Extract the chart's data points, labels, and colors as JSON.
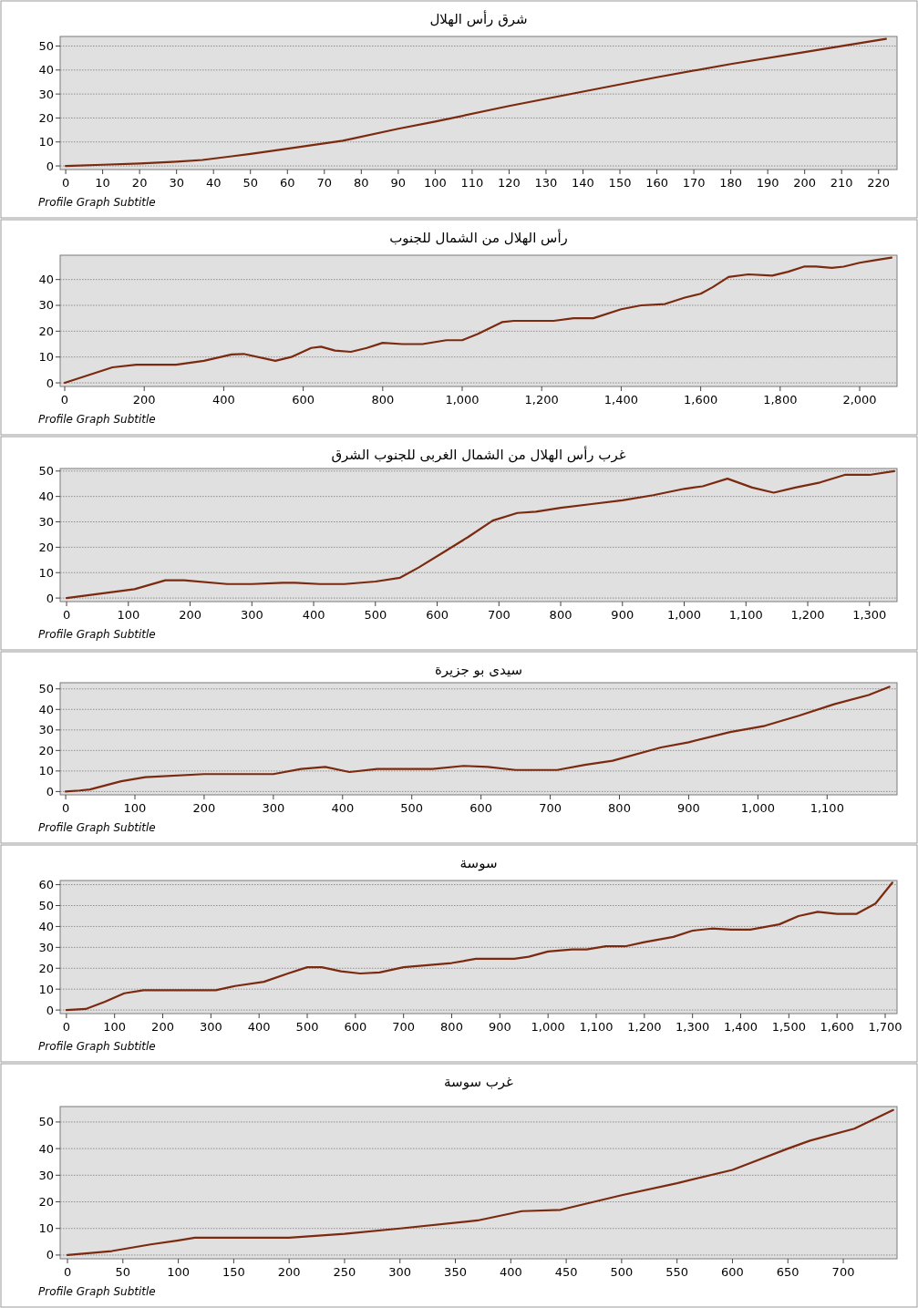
{
  "chart_data": [
    {
      "type": "line",
      "title": "شرق رأس الهلال",
      "annotations": [
        "Profile Graph Subtitle"
      ],
      "color": "#7b2a10",
      "grid": "y",
      "xlim": [
        -1.5,
        225
      ],
      "ylim": [
        -1.5,
        54
      ],
      "xticks": [
        0,
        10,
        20,
        30,
        40,
        50,
        60,
        70,
        80,
        90,
        100,
        110,
        120,
        130,
        140,
        150,
        160,
        170,
        180,
        190,
        200,
        210,
        220
      ],
      "yticks": [
        0,
        10,
        20,
        30,
        40,
        50
      ],
      "x": [
        0,
        10,
        20,
        30,
        37,
        50,
        60,
        75,
        90,
        100,
        120,
        140,
        160,
        180,
        200,
        222
      ],
      "values": [
        0,
        0.5,
        1,
        1.8,
        2.5,
        5,
        7.2,
        10.5,
        15.5,
        18.5,
        25,
        31,
        37,
        42.5,
        47.5,
        53
      ]
    },
    {
      "type": "line",
      "title": "رأس الهلال من الشمال للجنوب",
      "annotations": [
        "Profile Graph Subtitle"
      ],
      "color": "#7b2a10",
      "grid": "y",
      "xlim": [
        -11.5,
        2094
      ],
      "ylim": [
        -1.4,
        49.4
      ],
      "xticks": [
        0,
        200,
        400,
        600,
        800,
        {
          "value": 1000,
          "label": "1,000"
        },
        {
          "value": 1200,
          "label": "1,200"
        },
        {
          "value": 1400,
          "label": "1,400"
        },
        {
          "value": 1600,
          "label": "1,600"
        },
        {
          "value": 1800,
          "label": "1,800"
        },
        {
          "value": 2000,
          "label": "2,000"
        }
      ],
      "yticks": [
        0,
        10,
        20,
        30,
        40
      ],
      "x": [
        0,
        60,
        120,
        180,
        280,
        350,
        420,
        450,
        530,
        570,
        620,
        645,
        680,
        720,
        760,
        800,
        850,
        900,
        960,
        1000,
        1040,
        1100,
        1130,
        1230,
        1280,
        1330,
        1400,
        1450,
        1510,
        1560,
        1600,
        1630,
        1670,
        1720,
        1780,
        1820,
        1860,
        1890,
        1930,
        1960,
        2000,
        2040,
        2080
      ],
      "values": [
        0,
        3,
        6,
        7,
        7,
        8.5,
        11,
        11.2,
        8.5,
        10,
        13.5,
        14,
        12.5,
        12,
        13.5,
        15.5,
        15,
        15,
        16.5,
        16.5,
        19,
        23.5,
        24,
        24,
        25,
        25,
        28.5,
        30,
        30.5,
        33,
        34.5,
        37,
        41,
        42,
        41.5,
        43,
        45,
        45,
        44.5,
        45,
        46.5,
        47.5,
        48.5
      ]
    },
    {
      "type": "line",
      "title": "غرب رأس الهلال من الشمال الغربى للجنوب الشرق",
      "annotations": [
        "Profile Graph Subtitle"
      ],
      "color": "#7b2a10",
      "grid": "y",
      "xlim": [
        -10.4,
        1344.6
      ],
      "ylim": [
        -1.4,
        51
      ],
      "xticks": [
        0,
        100,
        200,
        300,
        400,
        500,
        600,
        700,
        800,
        900,
        {
          "value": 1000,
          "label": "1,000"
        },
        {
          "value": 1100,
          "label": "1,100"
        },
        {
          "value": 1200,
          "label": "1,200"
        },
        {
          "value": 1300,
          "label": "1,300"
        }
      ],
      "yticks": [
        0,
        10,
        20,
        30,
        40,
        50
      ],
      "x": [
        0,
        110,
        160,
        190,
        260,
        300,
        350,
        370,
        410,
        450,
        500,
        540,
        570,
        610,
        650,
        690,
        730,
        760,
        800,
        850,
        900,
        950,
        1000,
        1030,
        1070,
        1110,
        1145,
        1180,
        1220,
        1260,
        1300,
        1340
      ],
      "values": [
        0,
        3.5,
        7,
        7,
        5.5,
        5.5,
        6,
        6,
        5.5,
        5.5,
        6.5,
        8,
        12,
        18,
        24,
        30.5,
        33.5,
        34,
        35.5,
        37,
        38.5,
        40.5,
        43,
        44,
        47,
        43.5,
        41.5,
        43.5,
        45.5,
        48.5,
        48.5,
        50
      ]
    },
    {
      "type": "line",
      "title": "سيدى بو جزيرة",
      "annotations": [
        "Profile Graph Subtitle"
      ],
      "color": "#7b2a10",
      "grid": "y",
      "xlim": [
        -8,
        1201
      ],
      "ylim": [
        -1.6,
        53
      ],
      "xticks": [
        0,
        100,
        200,
        300,
        400,
        500,
        600,
        700,
        800,
        900,
        {
          "value": 1000,
          "label": "1,000"
        },
        {
          "value": 1100,
          "label": "1,100"
        }
      ],
      "yticks": [
        0,
        10,
        20,
        30,
        40,
        50
      ],
      "x": [
        0,
        20,
        35,
        80,
        115,
        200,
        230,
        300,
        340,
        375,
        410,
        450,
        530,
        575,
        610,
        650,
        710,
        750,
        790,
        860,
        900,
        960,
        1010,
        1060,
        1110,
        1160,
        1190
      ],
      "values": [
        0,
        0.5,
        1,
        5,
        7,
        8.5,
        8.5,
        8.5,
        11,
        12,
        9.5,
        11,
        11,
        12.5,
        12,
        10.5,
        10.5,
        13,
        15,
        21.5,
        24,
        29,
        32,
        37,
        42.5,
        47,
        51
      ]
    },
    {
      "type": "line",
      "title": "سوسة",
      "annotations": [
        "Profile Graph Subtitle"
      ],
      "color": "#7b2a10",
      "grid": "y",
      "xlim": [
        -13,
        1724.6
      ],
      "ylim": [
        -1.7,
        62
      ],
      "xticks": [
        0,
        100,
        200,
        300,
        400,
        500,
        600,
        700,
        800,
        900,
        {
          "value": 1000,
          "label": "1,000"
        },
        {
          "value": 1100,
          "label": "1,100"
        },
        {
          "value": 1200,
          "label": "1,200"
        },
        {
          "value": 1300,
          "label": "1,300"
        },
        {
          "value": 1400,
          "label": "1,400"
        },
        {
          "value": 1500,
          "label": "1,500"
        },
        {
          "value": 1600,
          "label": "1,600"
        },
        {
          "value": 1700,
          "label": "1,700"
        }
      ],
      "yticks": [
        0,
        10,
        20,
        30,
        40,
        50,
        60
      ],
      "x": [
        0,
        40,
        80,
        120,
        160,
        310,
        350,
        410,
        460,
        500,
        530,
        570,
        610,
        650,
        700,
        750,
        800,
        850,
        930,
        960,
        1000,
        1050,
        1080,
        1120,
        1160,
        1200,
        1260,
        1300,
        1340,
        1380,
        1420,
        1480,
        1520,
        1560,
        1600,
        1640,
        1680,
        1715
      ],
      "values": [
        0,
        0.5,
        4,
        8,
        9.5,
        9.5,
        11.5,
        13.5,
        17.5,
        20.5,
        20.5,
        18.5,
        17.5,
        18,
        20.5,
        21.5,
        22.5,
        24.5,
        24.5,
        25.5,
        28,
        29,
        29,
        30.5,
        30.5,
        32.5,
        35,
        38,
        39,
        38.5,
        38.5,
        41,
        45,
        47,
        46,
        46,
        51,
        61
      ]
    },
    {
      "type": "line",
      "title": "غرب سوسة",
      "annotations": [
        "Profile Graph Subtitle"
      ],
      "color": "#7b2a10",
      "grid": "y",
      "xlim": [
        -6.6,
        748.5
      ],
      "ylim": [
        -1.4,
        55.8
      ],
      "xticks": [
        0,
        50,
        100,
        150,
        200,
        250,
        300,
        350,
        400,
        450,
        500,
        550,
        600,
        650,
        700
      ],
      "yticks": [
        0,
        10,
        20,
        30,
        40,
        50
      ],
      "x": [
        0,
        40,
        75,
        100,
        115,
        200,
        250,
        300,
        370,
        410,
        445,
        500,
        550,
        600,
        650,
        670,
        710,
        745
      ],
      "values": [
        0,
        1.5,
        4,
        5.5,
        6.5,
        6.5,
        8,
        10,
        13,
        16.5,
        17,
        22.5,
        27,
        32,
        40,
        43,
        47.5,
        54.5
      ]
    }
  ]
}
